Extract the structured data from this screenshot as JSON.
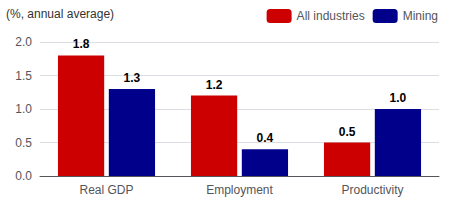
{
  "chart_data": {
    "type": "bar",
    "ylabel": "(%, annual average)",
    "categories": [
      "Real GDP",
      "Employment",
      "Productivity"
    ],
    "series": [
      {
        "name": "All industries",
        "color": "#cc0000",
        "values": [
          1.8,
          1.2,
          0.5
        ],
        "value_labels": [
          "1.8",
          "1.2",
          "0.5"
        ]
      },
      {
        "name": "Mining",
        "color": "#00008b",
        "values": [
          1.3,
          0.4,
          1.0
        ],
        "value_labels": [
          "1.3",
          "0.4",
          "1.0"
        ]
      }
    ],
    "ylim": [
      0.0,
      2.0
    ],
    "yticks": [
      {
        "value": 0,
        "label": "0.0"
      },
      0.5,
      {
        "value": 1,
        "label": "1.0"
      },
      1.5,
      {
        "value": 2,
        "label": "2.0"
      }
    ],
    "grid": true,
    "legend": "upper right",
    "data_labels": true
  }
}
